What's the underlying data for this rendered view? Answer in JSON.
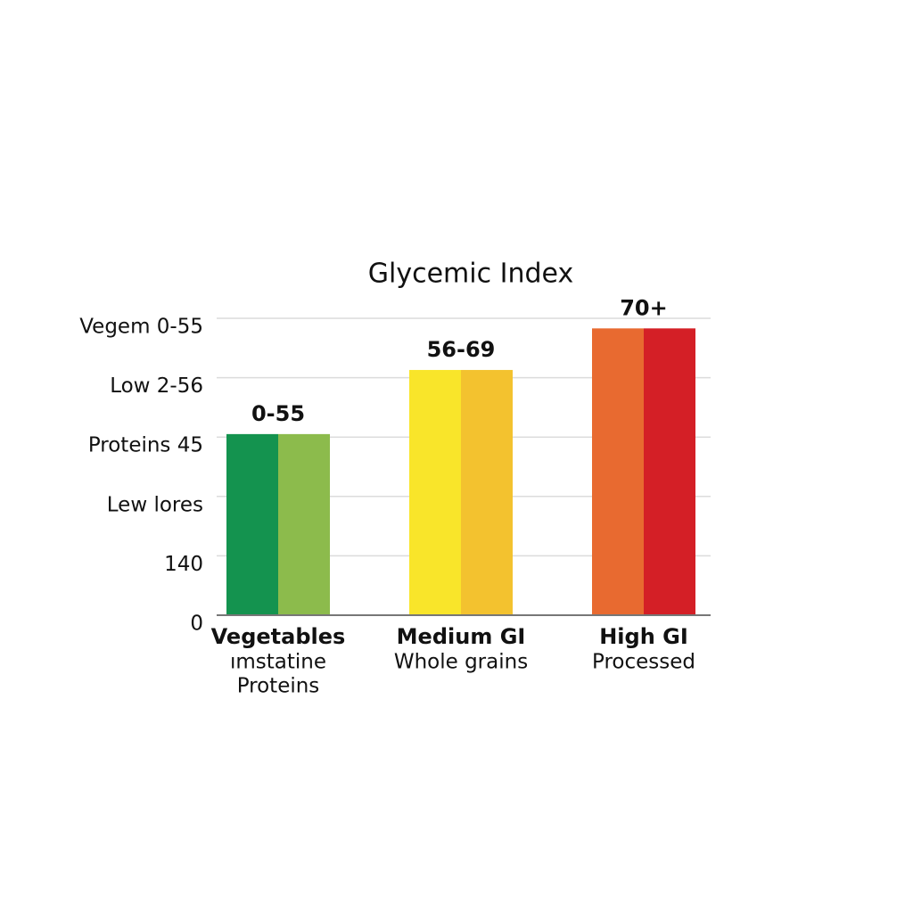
{
  "chart_data": {
    "type": "bar",
    "title": "Glycemic Index",
    "categories": [
      "Vegetables",
      "Medium GI",
      "High GI"
    ],
    "category_descriptions": [
      [
        "ımstatine",
        "Proteins"
      ],
      [
        "Whole grains"
      ],
      [
        "Processed"
      ]
    ],
    "series": [
      {
        "colors": [
          "#14934f",
          "#f9e52a",
          "#e86a30"
        ],
        "values": [
          3.05,
          4.13,
          4.83
        ]
      },
      {
        "colors": [
          "#8cbb4c",
          "#f3c22f",
          "#d41f26"
        ],
        "values": [
          3.05,
          4.13,
          4.83
        ]
      }
    ],
    "value_labels": [
      "0-55",
      "56-69",
      "70+"
    ],
    "ylim": [
      0,
      5
    ],
    "yticks": [
      0,
      {
        "value": 1,
        "label": "140"
      },
      {
        "value": 2,
        "label": "Lew lores"
      },
      {
        "value": 3,
        "label": "Proteins 45"
      },
      {
        "value": 4,
        "label": "Low 2-56"
      },
      {
        "value": 5,
        "label": "Vegem 0-55"
      }
    ],
    "grid": true
  }
}
